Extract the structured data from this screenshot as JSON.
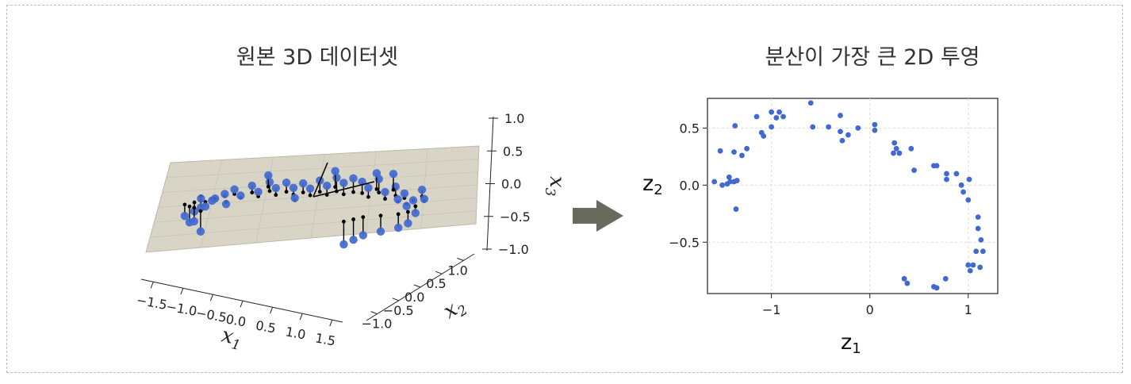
{
  "chart_data": [
    {
      "type": "scatter-3d",
      "title": "원본 3D 데이터셋",
      "xlabel": "x1",
      "ylabel": "x2",
      "zlabel": "x3",
      "x_ticks": [
        "−1.5",
        "−1.0",
        "−0.5",
        "0.0",
        "0.5",
        "1.0",
        "1.5"
      ],
      "y_ticks": [
        "−1.0",
        "−0.5",
        "0.0",
        "0.5",
        "1.0"
      ],
      "z_ticks": [
        "−1.0",
        "−0.5",
        "0.0",
        "0.5",
        "1.0"
      ],
      "plane": true,
      "point_color": "#4169cf",
      "points": [
        [
          -1.45,
          -0.55,
          -0.25
        ],
        [
          -1.4,
          -0.5,
          -0.35
        ],
        [
          -1.35,
          -0.45,
          -0.2
        ],
        [
          -1.32,
          -0.6,
          -0.3
        ],
        [
          -1.28,
          -0.4,
          -0.15
        ],
        [
          -1.25,
          -0.55,
          -0.45
        ],
        [
          -1.2,
          -0.5,
          -0.1
        ],
        [
          -1.15,
          -0.35,
          -0.05
        ],
        [
          -1.1,
          -0.4,
          0.0
        ],
        [
          -1.0,
          -0.3,
          0.05
        ],
        [
          -0.9,
          -0.2,
          0.1
        ],
        [
          -0.8,
          -0.3,
          0.05
        ],
        [
          -0.7,
          -0.1,
          0.15
        ],
        [
          -0.6,
          -0.2,
          0.1
        ],
        [
          -0.5,
          0.0,
          0.2
        ],
        [
          -0.4,
          -0.1,
          0.15
        ],
        [
          -0.3,
          0.05,
          0.2
        ],
        [
          -0.2,
          0.0,
          0.15
        ],
        [
          -0.1,
          0.1,
          0.2
        ],
        [
          0.0,
          0.05,
          0.15
        ],
        [
          0.1,
          0.15,
          0.25
        ],
        [
          0.2,
          0.1,
          0.2
        ],
        [
          0.3,
          0.2,
          0.3
        ],
        [
          0.4,
          0.15,
          0.25
        ],
        [
          0.5,
          0.25,
          0.3
        ],
        [
          0.6,
          0.3,
          0.25
        ],
        [
          0.7,
          0.2,
          0.2
        ],
        [
          0.8,
          0.35,
          0.3
        ],
        [
          0.9,
          0.25,
          0.15
        ],
        [
          1.0,
          0.4,
          0.2
        ],
        [
          1.05,
          0.3,
          0.05
        ],
        [
          1.1,
          0.45,
          0.1
        ],
        [
          1.15,
          0.35,
          -0.05
        ],
        [
          1.2,
          0.5,
          0.0
        ],
        [
          1.25,
          0.4,
          -0.15
        ],
        [
          1.2,
          0.2,
          -0.25
        ],
        [
          1.1,
          0.1,
          -0.3
        ],
        [
          0.9,
          0.0,
          -0.35
        ],
        [
          0.7,
          -0.1,
          -0.4
        ],
        [
          0.6,
          -0.2,
          -0.45
        ],
        [
          0.5,
          -0.3,
          -0.5
        ],
        [
          1.3,
          0.55,
          0.15
        ],
        [
          1.35,
          0.45,
          0.05
        ],
        [
          0.95,
          0.5,
          0.35
        ],
        [
          0.75,
          0.45,
          0.35
        ],
        [
          -1.3,
          -0.3,
          -0.05
        ],
        [
          -0.95,
          -0.45,
          -0.05
        ],
        [
          -0.55,
          0.15,
          0.25
        ],
        [
          -0.15,
          -0.15,
          0.05
        ],
        [
          0.25,
          0.35,
          0.35
        ]
      ]
    },
    {
      "type": "scatter",
      "title": "분산이 가장 큰 2D 투영",
      "xlabel": "z1",
      "ylabel": "z2",
      "xlim": [
        -1.65,
        1.3
      ],
      "ylim": [
        -0.95,
        0.76
      ],
      "x_ticks": [
        -1,
        0,
        1
      ],
      "x_tick_labels": [
        "−1",
        "0",
        "1"
      ],
      "y_ticks": [
        -0.5,
        0.0,
        0.5
      ],
      "y_tick_labels": [
        "−0.5",
        "0.0",
        "0.5"
      ],
      "grid": true,
      "point_color": "#4169cf",
      "points": [
        [
          -0.6,
          0.72
        ],
        [
          -1.15,
          0.6
        ],
        [
          -1.0,
          0.64
        ],
        [
          -0.95,
          0.59
        ],
        [
          -0.92,
          0.64
        ],
        [
          -0.88,
          0.6
        ],
        [
          -1.1,
          0.46
        ],
        [
          -1.08,
          0.43
        ],
        [
          -1.0,
          0.51
        ],
        [
          -0.58,
          0.51
        ],
        [
          -0.3,
          0.61
        ],
        [
          -0.42,
          0.51
        ],
        [
          -0.3,
          0.47
        ],
        [
          -0.28,
          0.39
        ],
        [
          -0.22,
          0.44
        ],
        [
          -0.12,
          0.5
        ],
        [
          0.05,
          0.53
        ],
        [
          0.05,
          0.48
        ],
        [
          -1.37,
          0.52
        ],
        [
          -1.3,
          0.26
        ],
        [
          -1.25,
          0.32
        ],
        [
          -1.38,
          0.29
        ],
        [
          -1.52,
          0.3
        ],
        [
          -1.58,
          0.03
        ],
        [
          -1.5,
          0.0
        ],
        [
          -1.45,
          0.01
        ],
        [
          -1.43,
          0.07
        ],
        [
          -1.38,
          0.03
        ],
        [
          -1.35,
          0.04
        ],
        [
          -1.42,
          0.03
        ],
        [
          -1.36,
          -0.21
        ],
        [
          0.25,
          0.37
        ],
        [
          0.27,
          0.32
        ],
        [
          0.24,
          0.28
        ],
        [
          0.3,
          0.28
        ],
        [
          0.42,
          0.32
        ],
        [
          0.45,
          0.13
        ],
        [
          0.65,
          0.17
        ],
        [
          0.68,
          0.17
        ],
        [
          0.78,
          0.1
        ],
        [
          0.78,
          0.05
        ],
        [
          0.88,
          0.1
        ],
        [
          0.93,
          0.0
        ],
        [
          0.95,
          -0.06
        ],
        [
          1.01,
          0.05
        ],
        [
          1.0,
          -0.13
        ],
        [
          1.1,
          -0.28
        ],
        [
          1.1,
          -0.38
        ],
        [
          1.13,
          -0.48
        ],
        [
          1.15,
          -0.58
        ],
        [
          1.08,
          -0.58
        ],
        [
          1.0,
          -0.7
        ],
        [
          1.05,
          -0.7
        ],
        [
          1.12,
          -0.72
        ],
        [
          1.02,
          -0.75
        ],
        [
          0.35,
          -0.82
        ],
        [
          0.38,
          -0.86
        ],
        [
          0.65,
          -0.89
        ],
        [
          0.68,
          -0.9
        ],
        [
          0.77,
          -0.82
        ]
      ]
    }
  ]
}
